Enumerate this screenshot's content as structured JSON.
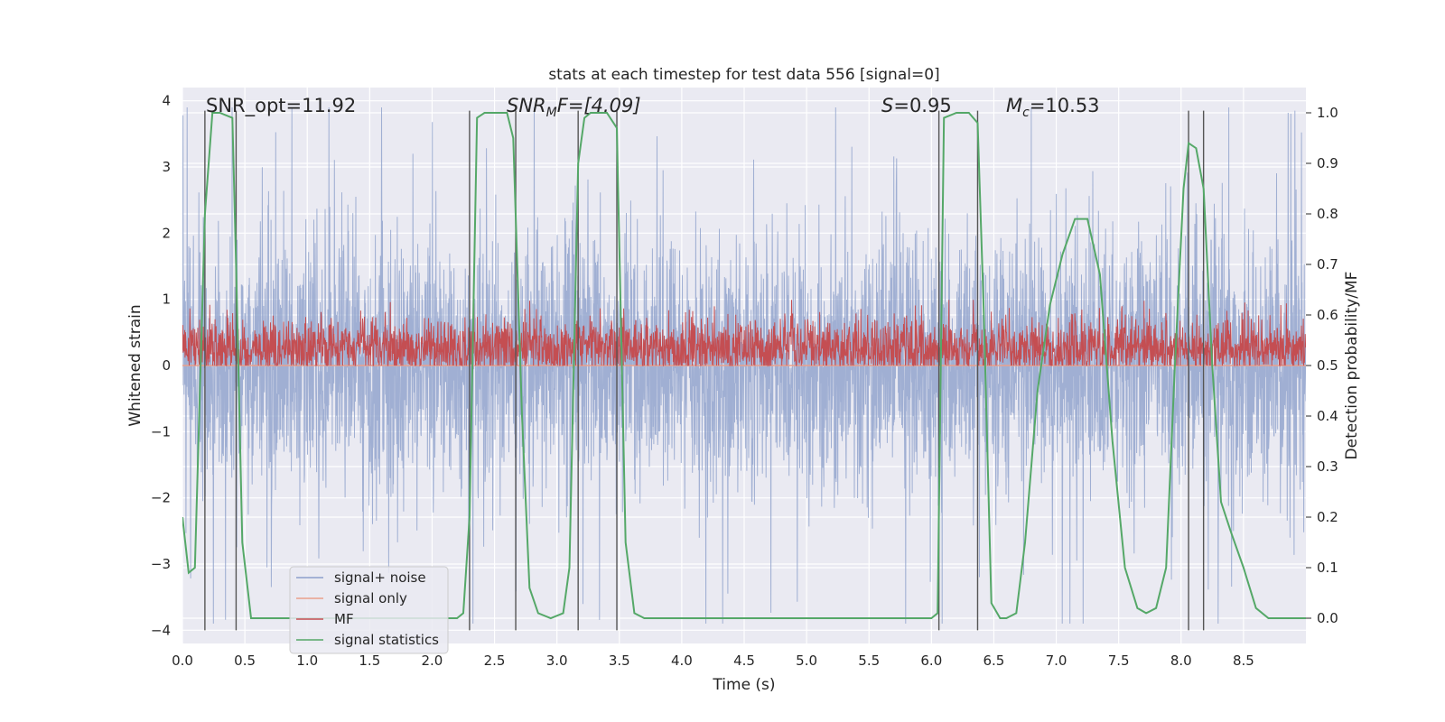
{
  "chart_data": {
    "type": "line",
    "title": "stats at each timestep for test data 556 [signal=0]",
    "xlabel": "Time (s)",
    "ylabel_left": "Whitened strain",
    "ylabel_right": "Detection probability/MF",
    "xlim": [
      0,
      9.0
    ],
    "ylim_left": [
      -4.2,
      4.2
    ],
    "ylim_right": [
      -0.05,
      1.05
    ],
    "xticks": [
      0.0,
      0.5,
      1.0,
      1.5,
      2.0,
      2.5,
      3.0,
      3.5,
      4.0,
      4.5,
      5.0,
      5.5,
      6.0,
      6.5,
      7.0,
      7.5,
      8.0,
      8.5
    ],
    "xtick_labels": [
      "0.0",
      "0.5",
      "1.0",
      "1.5",
      "2.0",
      "2.5",
      "3.0",
      "3.5",
      "4.0",
      "4.5",
      "5.0",
      "5.5",
      "6.0",
      "6.5",
      "7.0",
      "7.5",
      "8.0",
      "8.5"
    ],
    "yticks_left": [
      4,
      3,
      2,
      1,
      0,
      -1,
      -2,
      -3,
      -4
    ],
    "ytick_labels_left": [
      "4",
      "3",
      "2",
      "1",
      "0",
      "−1",
      "−2",
      "−3",
      "−4"
    ],
    "yticks_right": [
      1.0,
      0.9,
      0.8,
      0.7,
      0.6,
      0.5,
      0.4,
      0.3,
      0.2,
      0.1,
      0.0
    ],
    "ytick_labels_right": [
      "1.0",
      "0.9",
      "0.8",
      "0.7",
      "0.6",
      "0.5",
      "0.4",
      "0.3",
      "0.2",
      "0.1",
      "0.0"
    ],
    "grid": true,
    "legend_position": "lower-left",
    "annotations": {
      "snr_opt": "SNR_opt=11.92",
      "snr_mf_main": "SNR",
      "snr_mf_sub": "M",
      "snr_mf_rest": "F=[4.09]",
      "s_main": "S",
      "s_rest": "=0.95",
      "mc_main": "M",
      "mc_sub": "c",
      "mc_rest": "=10.53"
    },
    "vlines": [
      0.18,
      0.43,
      2.3,
      2.67,
      3.17,
      3.48,
      6.06,
      6.37,
      8.06,
      8.18
    ],
    "vline_range_left": [
      -4.0,
      3.85
    ],
    "series": [
      {
        "name": "signal+ noise",
        "axis": "left",
        "color": "#8da0cb",
        "opacity": 0.8,
        "noise": {
          "samples": 4096,
          "envelope_sigma": 0.95,
          "peak_max": 3.9,
          "peak_min": -3.9
        }
      },
      {
        "name": "signal only",
        "axis": "left",
        "color": "#e9a08b",
        "x": [
          0.0,
          9.0
        ],
        "y": [
          0,
          0
        ]
      },
      {
        "name": "MF",
        "axis": "right",
        "color": "#c44e52",
        "noise": {
          "samples": 3000,
          "baseline": 0.535,
          "jitter": 0.03,
          "spike_max": 0.63,
          "min": 0.5
        }
      },
      {
        "name": "signal statistics",
        "axis": "right",
        "color": "#55a868",
        "x": [
          0.0,
          0.05,
          0.1,
          0.18,
          0.24,
          0.3,
          0.4,
          0.43,
          0.48,
          0.55,
          0.7,
          0.9,
          1.1,
          1.5,
          2.0,
          2.2,
          2.25,
          2.3,
          2.36,
          2.42,
          2.6,
          2.65,
          2.72,
          2.78,
          2.85,
          2.95,
          3.05,
          3.1,
          3.17,
          3.22,
          3.27,
          3.4,
          3.48,
          3.55,
          3.62,
          3.7,
          4.0,
          5.0,
          5.9,
          6.0,
          6.05,
          6.1,
          6.2,
          6.3,
          6.37,
          6.42,
          6.48,
          6.55,
          6.6,
          6.68,
          6.75,
          6.85,
          6.95,
          7.05,
          7.15,
          7.25,
          7.35,
          7.45,
          7.55,
          7.65,
          7.72,
          7.8,
          7.88,
          7.95,
          8.02,
          8.06,
          8.12,
          8.18,
          8.25,
          8.32,
          8.4,
          8.5,
          8.6,
          8.7,
          8.8,
          9.0
        ],
        "y": [
          0.2,
          0.09,
          0.1,
          0.8,
          1.0,
          1.0,
          0.99,
          0.7,
          0.15,
          0.0,
          0.0,
          0.0,
          0.0,
          0.0,
          0.0,
          0.0,
          0.01,
          0.2,
          0.99,
          1.0,
          1.0,
          0.95,
          0.4,
          0.06,
          0.01,
          0.0,
          0.01,
          0.1,
          0.9,
          0.99,
          1.0,
          1.0,
          0.97,
          0.15,
          0.01,
          0.0,
          0.0,
          0.0,
          0.0,
          0.0,
          0.01,
          0.99,
          1.0,
          1.0,
          0.98,
          0.6,
          0.03,
          0.0,
          0.0,
          0.01,
          0.15,
          0.45,
          0.62,
          0.72,
          0.79,
          0.79,
          0.68,
          0.35,
          0.1,
          0.02,
          0.01,
          0.02,
          0.1,
          0.5,
          0.85,
          0.94,
          0.93,
          0.85,
          0.5,
          0.23,
          0.17,
          0.1,
          0.02,
          0.0,
          0.0,
          0.0
        ]
      }
    ]
  }
}
